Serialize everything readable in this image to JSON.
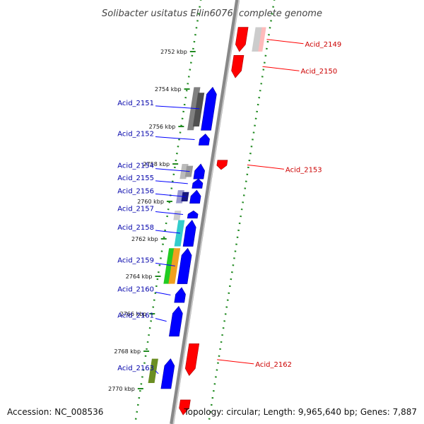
{
  "title": "Solibacter usitatus Ellin6076, complete genome",
  "footer": {
    "accession": "Accession: NC_008536",
    "summary": "Topology: circular; Length: 9,965,640 bp; Genes: 7,887"
  },
  "colors": {
    "forward": "#0000ff",
    "reverse": "#ff0000",
    "tick": "#228b22",
    "backbone": "#888888"
  },
  "ticks": [
    {
      "label": "2752 kbp",
      "pos": 2752
    },
    {
      "label": "2754 kbp",
      "pos": 2754
    },
    {
      "label": "2756 kbp",
      "pos": 2756
    },
    {
      "label": "2758 kbp",
      "pos": 2758
    },
    {
      "label": "2760 kbp",
      "pos": 2760
    },
    {
      "label": "2762 kbp",
      "pos": 2762
    },
    {
      "label": "2764 kbp",
      "pos": 2764
    },
    {
      "label": "2766 kbp",
      "pos": 2766
    },
    {
      "label": "2768 kbp",
      "pos": 2768
    },
    {
      "label": "2770 kbp",
      "pos": 2770
    }
  ],
  "forward_genes": [
    {
      "name": "Acid_2151",
      "start": 2753.9,
      "end": 2756.2
    },
    {
      "name": "Acid_2152",
      "start": 2756.4,
      "end": 2757.0
    },
    {
      "name": "Acid_2154",
      "start": 2758.0,
      "end": 2758.8
    },
    {
      "name": "Acid_2155",
      "start": 2758.8,
      "end": 2759.3
    },
    {
      "name": "Acid_2156",
      "start": 2759.4,
      "end": 2760.1
    },
    {
      "name": "Acid_2157",
      "start": 2760.5,
      "end": 2760.9
    },
    {
      "name": "Acid_2158",
      "start": 2761.0,
      "end": 2762.4
    },
    {
      "name": "Acid_2159",
      "start": 2762.5,
      "end": 2764.4
    },
    {
      "name": "Acid_2160",
      "start": 2764.6,
      "end": 2765.4
    },
    {
      "name": "Acid_2161",
      "start": 2765.6,
      "end": 2767.2
    },
    {
      "name": "Acid_2163",
      "start": 2768.4,
      "end": 2770.0
    }
  ],
  "reverse_genes": [
    {
      "name": "Acid_2149",
      "start": 2750.7,
      "end": 2752.0
    },
    {
      "name": "Acid_2150",
      "start": 2752.2,
      "end": 2753.4
    },
    {
      "name": "Acid_2153",
      "start": 2757.8,
      "end": 2758.3
    },
    {
      "name": "Acid_2162",
      "start": 2767.6,
      "end": 2769.3
    },
    {
      "name": "",
      "start": 2770.6,
      "end": 2771.4
    }
  ],
  "hit_bars": [
    {
      "color": "#808080",
      "start": 2753.9,
      "end": 2756.2
    },
    {
      "color": "#505050",
      "start": 2754.2,
      "end": 2756.0
    },
    {
      "color": "#bbbbbb",
      "start": 2758.0,
      "end": 2758.8
    },
    {
      "color": "#999999",
      "start": 2758.1,
      "end": 2758.7
    },
    {
      "color": "#9999cc",
      "start": 2759.4,
      "end": 2760.1
    },
    {
      "color": "#1a1a80",
      "start": 2759.5,
      "end": 2760.0
    },
    {
      "color": "#cccccc",
      "start": 2760.5,
      "end": 2761.0
    },
    {
      "color": "#33cccc",
      "start": 2761.0,
      "end": 2762.4
    },
    {
      "color": "#22cc22",
      "start": 2762.5,
      "end": 2764.4
    },
    {
      "color": "#f0a020",
      "start": 2762.5,
      "end": 2764.4
    },
    {
      "color": "#6b8e23",
      "start": 2768.4,
      "end": 2769.7
    },
    {
      "color": "#ffbbbb",
      "start": 2750.7,
      "end": 2752.0
    },
    {
      "color": "#cccccc",
      "start": 2750.7,
      "end": 2752.0
    }
  ]
}
